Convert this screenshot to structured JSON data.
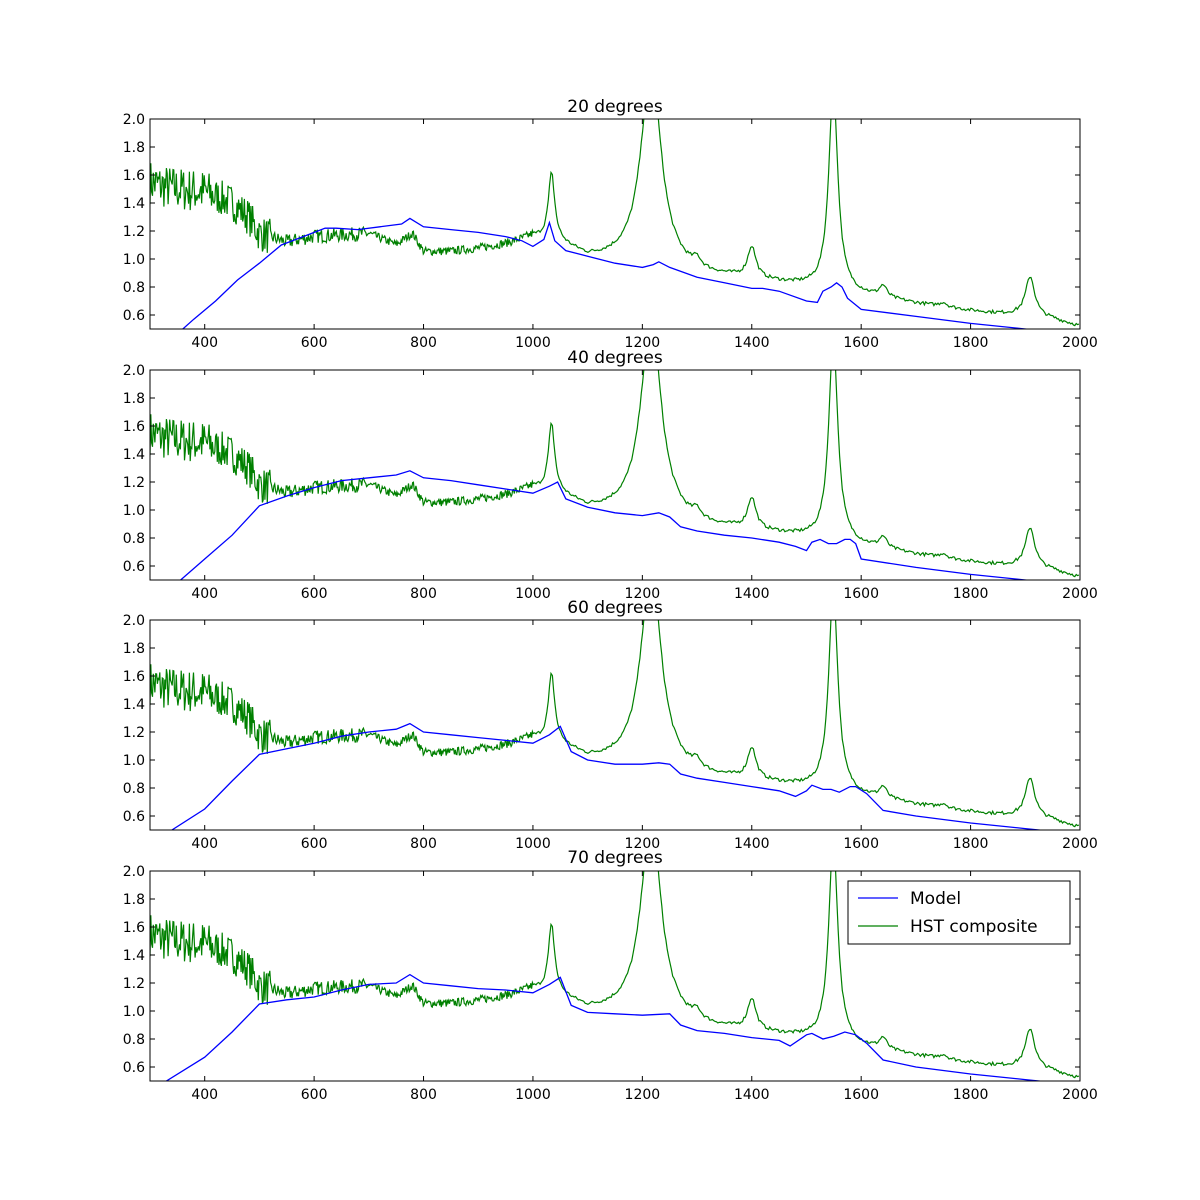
{
  "chart_data": [
    {
      "type": "line",
      "title": "20 degrees",
      "xlabel": "",
      "ylabel": "",
      "xlim": [
        300,
        2000
      ],
      "ylim": [
        0.5,
        2.0
      ],
      "xticks": [
        "400",
        "600",
        "800",
        "1000",
        "1200",
        "1400",
        "1600",
        "1800",
        "2000"
      ],
      "yticks": [
        "0.6",
        "0.8",
        "1.0",
        "1.2",
        "1.4",
        "1.6",
        "1.8",
        "2.0"
      ],
      "grid": false,
      "series": [
        {
          "role": "model",
          "color": "#0000ff",
          "x": [
            300,
            360,
            380,
            420,
            460,
            500,
            540,
            580,
            620,
            640,
            680,
            720,
            760,
            775,
            800,
            850,
            900,
            950,
            980,
            1000,
            1020,
            1030,
            1040,
            1060,
            1100,
            1150,
            1200,
            1220,
            1230,
            1250,
            1300,
            1350,
            1400,
            1420,
            1450,
            1500,
            1520,
            1530,
            1545,
            1555,
            1565,
            1575,
            1600,
            1700,
            1800,
            1900,
            2000
          ],
          "y": [
            0.3,
            0.5,
            0.57,
            0.7,
            0.85,
            0.97,
            1.1,
            1.16,
            1.22,
            1.22,
            1.21,
            1.23,
            1.25,
            1.29,
            1.23,
            1.21,
            1.19,
            1.16,
            1.13,
            1.09,
            1.14,
            1.26,
            1.13,
            1.06,
            1.02,
            0.97,
            0.94,
            0.96,
            0.98,
            0.94,
            0.87,
            0.83,
            0.79,
            0.79,
            0.77,
            0.7,
            0.69,
            0.77,
            0.8,
            0.83,
            0.8,
            0.72,
            0.64,
            0.59,
            0.54,
            0.5,
            0.46
          ]
        },
        {
          "role": "observed",
          "color": "#008000",
          "peak": 1.62
        }
      ]
    },
    {
      "type": "line",
      "title": "40 degrees",
      "xlabel": "",
      "ylabel": "",
      "xlim": [
        300,
        2000
      ],
      "ylim": [
        0.5,
        2.0
      ],
      "xticks": [
        "400",
        "600",
        "800",
        "1000",
        "1200",
        "1400",
        "1600",
        "1800",
        "2000"
      ],
      "yticks": [
        "0.6",
        "0.8",
        "1.0",
        "1.2",
        "1.4",
        "1.6",
        "1.8",
        "2.0"
      ],
      "grid": false,
      "series": [
        {
          "role": "model",
          "color": "#0000ff",
          "x": [
            300,
            350,
            400,
            450,
            500,
            550,
            600,
            650,
            700,
            750,
            775,
            800,
            850,
            900,
            950,
            1000,
            1030,
            1045,
            1060,
            1100,
            1150,
            1200,
            1230,
            1250,
            1270,
            1300,
            1350,
            1400,
            1450,
            1480,
            1500,
            1510,
            1525,
            1540,
            1555,
            1570,
            1580,
            1590,
            1600,
            1700,
            1800,
            1900,
            2000
          ],
          "y": [
            0.4,
            0.48,
            0.65,
            0.82,
            1.03,
            1.1,
            1.16,
            1.21,
            1.23,
            1.25,
            1.28,
            1.23,
            1.21,
            1.18,
            1.15,
            1.12,
            1.17,
            1.2,
            1.08,
            1.02,
            0.98,
            0.96,
            0.98,
            0.95,
            0.88,
            0.85,
            0.82,
            0.8,
            0.77,
            0.74,
            0.71,
            0.77,
            0.79,
            0.76,
            0.76,
            0.79,
            0.79,
            0.76,
            0.65,
            0.59,
            0.54,
            0.5,
            0.46
          ]
        },
        {
          "role": "observed",
          "color": "#008000",
          "peak": 1.62
        }
      ]
    },
    {
      "type": "line",
      "title": "60 degrees",
      "xlabel": "",
      "ylabel": "",
      "xlim": [
        300,
        2000
      ],
      "ylim": [
        0.5,
        2.0
      ],
      "xticks": [
        "400",
        "600",
        "800",
        "1000",
        "1200",
        "1400",
        "1600",
        "1800",
        "2000"
      ],
      "yticks": [
        "0.6",
        "0.8",
        "1.0",
        "1.2",
        "1.4",
        "1.6",
        "1.8",
        "2.0"
      ],
      "grid": false,
      "series": [
        {
          "role": "model",
          "color": "#0000ff",
          "x": [
            300,
            340,
            400,
            450,
            500,
            550,
            600,
            650,
            700,
            750,
            775,
            800,
            850,
            900,
            950,
            1000,
            1030,
            1050,
            1070,
            1100,
            1150,
            1200,
            1230,
            1250,
            1270,
            1300,
            1350,
            1400,
            1450,
            1480,
            1500,
            1510,
            1530,
            1545,
            1560,
            1580,
            1590,
            1610,
            1640,
            1700,
            1800,
            1900,
            2000
          ],
          "y": [
            0.4,
            0.5,
            0.65,
            0.85,
            1.04,
            1.08,
            1.12,
            1.17,
            1.2,
            1.22,
            1.26,
            1.2,
            1.18,
            1.16,
            1.14,
            1.12,
            1.18,
            1.24,
            1.06,
            1.0,
            0.97,
            0.97,
            0.98,
            0.97,
            0.9,
            0.87,
            0.84,
            0.81,
            0.78,
            0.74,
            0.78,
            0.82,
            0.79,
            0.79,
            0.77,
            0.81,
            0.81,
            0.76,
            0.64,
            0.6,
            0.55,
            0.51,
            0.47
          ]
        },
        {
          "role": "observed",
          "color": "#008000",
          "peak": 1.62
        }
      ]
    },
    {
      "type": "line",
      "title": "70 degrees",
      "xlabel": "",
      "ylabel": "",
      "xlim": [
        300,
        2000
      ],
      "ylim": [
        0.5,
        2.0
      ],
      "xticks": [
        "400",
        "600",
        "800",
        "1000",
        "1200",
        "1400",
        "1600",
        "1800",
        "2000"
      ],
      "yticks": [
        "0.6",
        "0.8",
        "1.0",
        "1.2",
        "1.4",
        "1.6",
        "1.8",
        "2.0"
      ],
      "grid": false,
      "legend": {
        "position": "upper right",
        "entries": [
          "Model",
          "HST composite"
        ]
      },
      "series": [
        {
          "role": "model",
          "name": "Model",
          "color": "#0000ff",
          "x": [
            300,
            330,
            400,
            450,
            500,
            550,
            600,
            650,
            700,
            750,
            775,
            800,
            850,
            900,
            950,
            1000,
            1030,
            1050,
            1070,
            1100,
            1150,
            1200,
            1250,
            1270,
            1300,
            1350,
            1400,
            1450,
            1470,
            1500,
            1510,
            1530,
            1550,
            1570,
            1590,
            1610,
            1640,
            1700,
            1800,
            1900,
            2000
          ],
          "y": [
            0.4,
            0.5,
            0.67,
            0.85,
            1.05,
            1.08,
            1.1,
            1.15,
            1.19,
            1.2,
            1.26,
            1.2,
            1.18,
            1.16,
            1.15,
            1.13,
            1.19,
            1.24,
            1.04,
            0.99,
            0.98,
            0.97,
            0.98,
            0.9,
            0.86,
            0.84,
            0.81,
            0.79,
            0.75,
            0.83,
            0.84,
            0.8,
            0.82,
            0.85,
            0.83,
            0.77,
            0.65,
            0.6,
            0.55,
            0.51,
            0.47
          ]
        },
        {
          "role": "observed",
          "name": "HST composite",
          "color": "#008000",
          "peak": 1.62
        }
      ]
    }
  ],
  "observed_continuum": {
    "x": [
      300,
      320,
      350,
      400,
      450,
      480,
      500,
      550,
      600,
      650,
      700,
      750,
      780,
      800,
      850,
      900,
      950,
      1000,
      1050,
      1100,
      1150,
      1200,
      1300,
      1400,
      1500,
      1600,
      1700,
      1800,
      1850,
      1900,
      1950,
      2000
    ],
    "y": [
      1.55,
      1.52,
      1.5,
      1.48,
      1.4,
      1.3,
      1.18,
      1.12,
      1.16,
      1.17,
      1.18,
      1.1,
      1.18,
      1.05,
      1.05,
      1.07,
      1.1,
      1.15,
      1.1,
      1.0,
      0.98,
      0.95,
      0.88,
      0.85,
      0.8,
      0.74,
      0.68,
      0.63,
      0.61,
      0.6,
      0.57,
      0.52
    ]
  },
  "observed_lines": [
    {
      "center": 1216,
      "amp": 1.45,
      "width": 22
    },
    {
      "center": 1549,
      "amp": 1.45,
      "width": 10
    },
    {
      "center": 1034,
      "amp": 0.48,
      "width": 7
    },
    {
      "center": 1400,
      "amp": 0.22,
      "width": 9
    },
    {
      "center": 1909,
      "amp": 0.28,
      "width": 10
    },
    {
      "center": 1640,
      "amp": 0.08,
      "width": 8
    },
    {
      "center": 1300,
      "amp": 0.06,
      "width": 8
    },
    {
      "center": 1750,
      "amp": 0.03,
      "width": 8
    }
  ]
}
